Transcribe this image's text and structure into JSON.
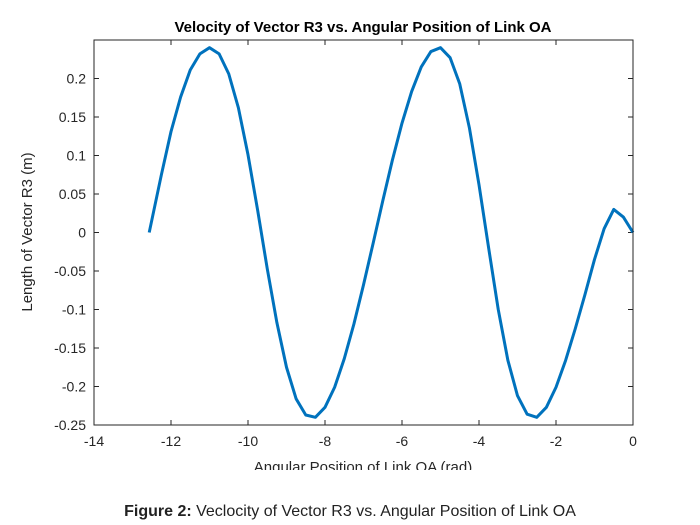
{
  "chart_data": {
    "type": "line",
    "title": "Velocity of Vector R3 vs. Angular Position of Link OA",
    "xlabel": "Angular Position of Link OA (rad)",
    "ylabel": "Length of Vector R3 (m)",
    "xlim": [
      -14,
      0
    ],
    "ylim": [
      -0.25,
      0.25
    ],
    "xticks": [
      -14,
      -12,
      -10,
      -8,
      -6,
      -4,
      -2,
      0
    ],
    "xtick_labels": [
      "-14",
      "-12",
      "-10",
      "-8",
      "-6",
      "-4",
      "-2",
      "0"
    ],
    "yticks": [
      -0.25,
      -0.2,
      -0.15,
      -0.1,
      -0.05,
      0,
      0.05,
      0.1,
      0.15,
      0.2
    ],
    "ytick_labels": [
      "-0.25",
      "-0.2",
      "-0.15",
      "-0.1",
      "-0.05",
      "0",
      "0.05",
      "0.1",
      "0.15",
      "0.2"
    ],
    "grid": false,
    "series": [
      {
        "color": "#0072BD",
        "x": [
          -12.566,
          -12.25,
          -12.0,
          -11.75,
          -11.5,
          -11.25,
          -11.0,
          -10.75,
          -10.5,
          -10.25,
          -10.0,
          -9.75,
          -9.5,
          -9.25,
          -9.0,
          -8.75,
          -8.5,
          -8.25,
          -8.0,
          -7.75,
          -7.5,
          -7.25,
          -7.0,
          -6.75,
          -6.5,
          -6.25,
          -6.0,
          -5.75,
          -5.5,
          -5.25,
          -5.0,
          -4.75,
          -4.5,
          -4.25,
          -4.0,
          -3.75,
          -3.5,
          -3.25,
          -3.0,
          -2.75,
          -2.5,
          -2.25,
          -2.0,
          -1.75,
          -1.5,
          -1.25,
          -1.0,
          -0.75,
          -0.5,
          -0.25,
          0.0
        ],
        "y": [
          0.0,
          0.075,
          0.131,
          0.176,
          0.211,
          0.232,
          0.24,
          0.232,
          0.206,
          0.162,
          0.101,
          0.029,
          -0.047,
          -0.117,
          -0.175,
          -0.216,
          -0.237,
          -0.24,
          -0.227,
          -0.201,
          -0.164,
          -0.119,
          -0.068,
          -0.014,
          0.041,
          0.094,
          0.142,
          0.183,
          0.215,
          0.235,
          0.24,
          0.227,
          0.193,
          0.136,
          0.062,
          -0.02,
          -0.1,
          -0.166,
          -0.212,
          -0.236,
          -0.24,
          -0.227,
          -0.201,
          -0.166,
          -0.125,
          -0.081,
          -0.035,
          0.005,
          0.03,
          0.02,
          0.0
        ]
      }
    ]
  },
  "caption": {
    "label": "Figure 2:",
    "text": " Veclocity of Vector R3 vs. Angular Position of Link OA"
  }
}
